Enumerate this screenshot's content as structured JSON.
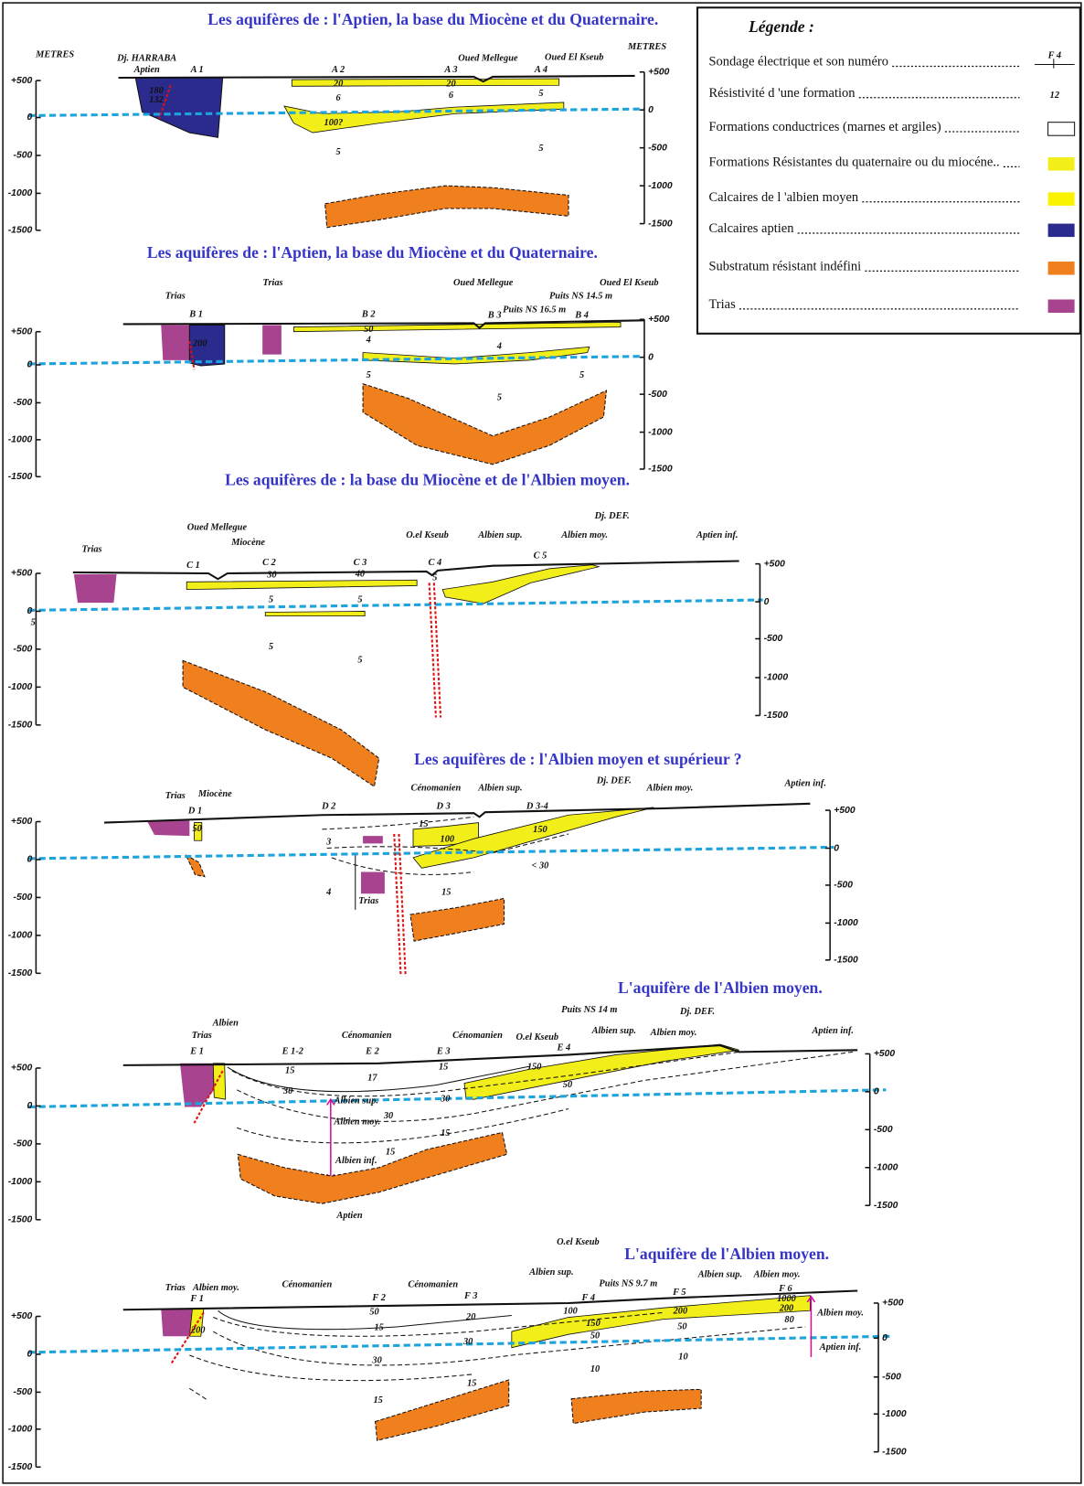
{
  "legend": {
    "title": "Légende :",
    "items": [
      "Sondage électrique et son numéro",
      "Résistivité d 'une formation",
      "Formations conductrices (marnes et argiles)",
      "Formations Résistantes du quaternaire ou du miocéne..",
      "Calcaires de l 'albien moyen",
      "Calcaires aptien",
      "Substratum résistant indéfini",
      "Trias"
    ],
    "symbols": [
      "F 4",
      "12"
    ]
  },
  "sections": [
    {
      "title": "Les aquifères de : l'Aptien, la base du Miocène et du Quaternaire.",
      "metres_left": "METRES",
      "metres_right": "METRES",
      "ticks_left": [
        "+500",
        "0",
        "-500",
        "-1000",
        "-1500"
      ],
      "ticks_right": [
        "+500",
        "0",
        "-500",
        "-1000",
        "-1500"
      ],
      "labels": [
        "Dj. HARRABA",
        "Aptien",
        "A 1",
        "A 2",
        "A 3",
        "A 4",
        "Oued Mellegue",
        "Oued El Kseub",
        "180",
        "132",
        "20",
        "20",
        "6",
        "6",
        "5",
        "100?",
        "5",
        "5"
      ]
    },
    {
      "title": "Les aquifères de : l'Aptien, la base du Miocène et du Quaternaire.",
      "ticks_left": [
        "+500",
        "0",
        "-500",
        "-1000",
        "-1500"
      ],
      "ticks_right": [
        "+500",
        "0",
        "-500",
        "-1000",
        "-1500"
      ],
      "labels": [
        "Trias",
        "Trias",
        "B 1",
        "B 2",
        "Oued Mellegue",
        "Puits NS 14.5 m",
        "Oued El Kseub",
        "Puits NS 16.5 m",
        "B 3",
        "B 4",
        "200",
        "50",
        "4",
        "4",
        "5",
        "5",
        "5"
      ]
    },
    {
      "title": "Les aquifères de : la base du Miocène et de l'Albien moyen.",
      "ticks_left": [
        "+500",
        "0",
        "-500",
        "-1000",
        "-1500"
      ],
      "ticks_right": [
        "+500",
        "0",
        "-500",
        "-1000",
        "-1500"
      ],
      "labels": [
        "Trias",
        "Oued Mellegue",
        "Miocène",
        "O.el Kseub",
        "Albien sup.",
        "Dj. DEF.",
        "Albien moy.",
        "Aptien inf.",
        "C 1",
        "C 2",
        "C 3",
        "C 4",
        "C 5",
        "30",
        "40",
        "5",
        "5",
        "5",
        "5",
        "5",
        "5"
      ]
    },
    {
      "title": "Les aquifères de : l'Albien moyen et supérieur ?",
      "ticks_left": [
        "+500",
        "0",
        "-500",
        "-1000",
        "-1500"
      ],
      "ticks_right": [
        "+500",
        "0",
        "-500",
        "-1000",
        "-1500"
      ],
      "labels": [
        "Trias",
        "Miocène",
        "D 1",
        "D 2",
        "D 3",
        "D 3-4",
        "Cénomanien",
        "Albien sup.",
        "Dj. DEF.",
        "Albien moy.",
        "Aptien inf.",
        "50",
        "15",
        "100",
        "150",
        "3",
        "< 30",
        "15",
        "4",
        "Trias"
      ]
    },
    {
      "title": "L'aquifère de l'Albien moyen.",
      "ticks_left": [
        "+500",
        "0",
        "-500",
        "-1000",
        "-1500"
      ],
      "ticks_right": [
        "+500",
        "0",
        "-500",
        "-1000",
        "-1500"
      ],
      "labels": [
        "Puits NS 14 m",
        "Dj. DEF.",
        "Albien",
        "Trias",
        "Cénomanien",
        "Cénomanien",
        "O.el Kseub",
        "Albien sup.",
        "Albien moy.",
        "Aptien inf.",
        "E 1",
        "E 1-2",
        "E 2",
        "E 3",
        "E 4",
        "15",
        "17",
        "15",
        "150",
        "50",
        "30",
        "30",
        "Albien sup.",
        "30",
        "Albien moy.",
        "15",
        "15",
        "Albien inf.",
        "Aptien"
      ]
    },
    {
      "title": "L'aquifère de l'Albien moyen.",
      "ticks_left": [
        "+500",
        "0",
        "-500",
        "-1000",
        "-1500"
      ],
      "ticks_right": [
        "+500",
        "0",
        "-500",
        "-1000",
        "-1500"
      ],
      "labels": [
        "O.el Kseub",
        "Albien sup.",
        "Albien moy.",
        "Albien sup.",
        "Puits NS 9.7 m",
        "Trias",
        "Albien moy.",
        "Cénomanien",
        "Cénomanien",
        "F 1",
        "F 2",
        "F 3",
        "F 4",
        "F 5",
        "F 6",
        "50",
        "20",
        "15",
        "100",
        "150",
        "200",
        "1000",
        "200",
        "80",
        "50",
        "50",
        "200",
        "30",
        "30",
        "10",
        "10",
        "15",
        "15",
        "Albien moy.",
        "Aptien inf."
      ]
    }
  ]
}
